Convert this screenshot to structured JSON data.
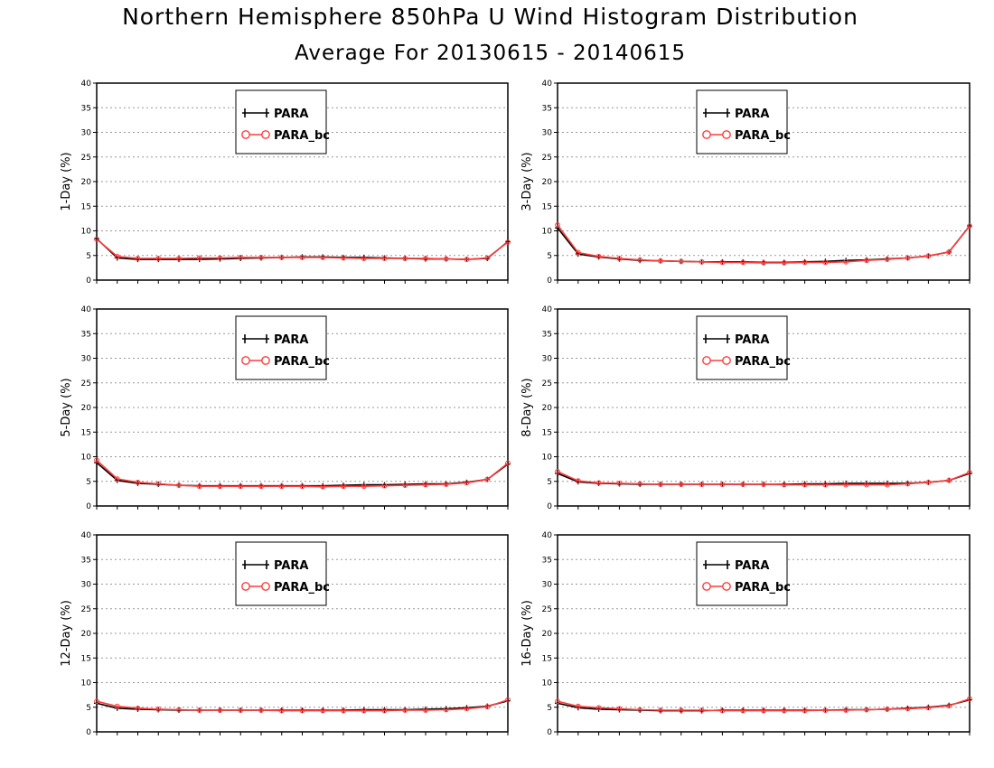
{
  "title": "Northern Hemisphere 850hPa U Wind Histogram Distribution",
  "subtitle": "Average For 20130615 - 20140615",
  "colors": {
    "series_1": "#000000",
    "series_2": "#ff3c3c",
    "grid": "#999999"
  },
  "chart_data": [
    {
      "type": "line",
      "ylabel": "1-Day (%)",
      "ylim": [
        0,
        40
      ],
      "yticks": [
        0,
        5,
        10,
        15,
        20,
        25,
        30,
        35,
        40
      ],
      "grid": "horizontal dotted",
      "legend": "top-center",
      "x": [
        1,
        2,
        3,
        4,
        5,
        6,
        7,
        8,
        9,
        10,
        11,
        12,
        13,
        14,
        15,
        16,
        17,
        18,
        19,
        20,
        21
      ],
      "series": [
        {
          "name": "PARA",
          "values": [
            8.4,
            4.5,
            4.2,
            4.2,
            4.2,
            4.2,
            4.3,
            4.4,
            4.5,
            4.6,
            4.7,
            4.7,
            4.6,
            4.6,
            4.5,
            4.4,
            4.3,
            4.3,
            4.2,
            4.4,
            7.8
          ]
        },
        {
          "name": "PARA_bc",
          "values": [
            8.3,
            4.8,
            4.4,
            4.4,
            4.4,
            4.5,
            4.5,
            4.6,
            4.6,
            4.6,
            4.6,
            4.6,
            4.5,
            4.4,
            4.4,
            4.4,
            4.4,
            4.3,
            4.2,
            4.5,
            7.7
          ]
        }
      ]
    },
    {
      "type": "line",
      "ylabel": "3-Day (%)",
      "ylim": [
        0,
        40
      ],
      "yticks": [
        0,
        5,
        10,
        15,
        20,
        25,
        30,
        35,
        40
      ],
      "grid": "horizontal dotted",
      "legend": "top-center",
      "x": [
        1,
        2,
        3,
        4,
        5,
        6,
        7,
        8,
        9,
        10,
        11,
        12,
        13,
        14,
        15,
        16,
        17,
        18,
        19,
        20,
        21
      ],
      "series": [
        {
          "name": "PARA",
          "values": [
            10.6,
            5.3,
            4.7,
            4.3,
            4.0,
            3.9,
            3.8,
            3.7,
            3.7,
            3.7,
            3.6,
            3.6,
            3.7,
            3.8,
            4.0,
            4.1,
            4.3,
            4.5,
            4.9,
            5.7,
            11.0
          ]
        },
        {
          "name": "PARA_bc",
          "values": [
            11.2,
            5.6,
            4.8,
            4.4,
            4.1,
            3.9,
            3.8,
            3.7,
            3.6,
            3.6,
            3.5,
            3.5,
            3.6,
            3.6,
            3.7,
            4.0,
            4.2,
            4.5,
            4.9,
            5.7,
            11.0
          ]
        }
      ]
    },
    {
      "type": "line",
      "ylabel": "5-Day (%)",
      "ylim": [
        0,
        40
      ],
      "yticks": [
        0,
        5,
        10,
        15,
        20,
        25,
        30,
        35,
        40
      ],
      "grid": "horizontal dotted",
      "legend": "top-center",
      "x": [
        1,
        2,
        3,
        4,
        5,
        6,
        7,
        8,
        9,
        10,
        11,
        12,
        13,
        14,
        15,
        16,
        17,
        18,
        19,
        20,
        21
      ],
      "series": [
        {
          "name": "PARA",
          "values": [
            8.8,
            5.2,
            4.6,
            4.4,
            4.2,
            4.1,
            4.1,
            4.1,
            4.1,
            4.1,
            4.1,
            4.1,
            4.2,
            4.3,
            4.3,
            4.4,
            4.5,
            4.5,
            4.8,
            5.4,
            8.5
          ]
        },
        {
          "name": "PARA_bc",
          "values": [
            9.3,
            5.5,
            4.8,
            4.5,
            4.2,
            4.0,
            4.0,
            4.0,
            4.0,
            4.0,
            4.0,
            3.9,
            4.0,
            4.0,
            4.1,
            4.2,
            4.3,
            4.4,
            4.7,
            5.4,
            8.7
          ]
        }
      ]
    },
    {
      "type": "line",
      "ylabel": "8-Day (%)",
      "ylim": [
        0,
        40
      ],
      "yticks": [
        0,
        5,
        10,
        15,
        20,
        25,
        30,
        35,
        40
      ],
      "grid": "horizontal dotted",
      "legend": "top-center",
      "x": [
        1,
        2,
        3,
        4,
        5,
        6,
        7,
        8,
        9,
        10,
        11,
        12,
        13,
        14,
        15,
        16,
        17,
        18,
        19,
        20,
        21
      ],
      "series": [
        {
          "name": "PARA",
          "values": [
            6.6,
            4.9,
            4.6,
            4.5,
            4.4,
            4.4,
            4.4,
            4.4,
            4.4,
            4.4,
            4.4,
            4.4,
            4.5,
            4.5,
            4.6,
            4.6,
            4.6,
            4.6,
            4.8,
            5.2,
            6.6
          ]
        },
        {
          "name": "PARA_bc",
          "values": [
            7.0,
            5.1,
            4.7,
            4.6,
            4.5,
            4.4,
            4.4,
            4.4,
            4.4,
            4.4,
            4.4,
            4.3,
            4.3,
            4.3,
            4.3,
            4.3,
            4.3,
            4.5,
            4.8,
            5.2,
            6.8
          ]
        }
      ]
    },
    {
      "type": "line",
      "ylabel": "12-Day (%)",
      "ylim": [
        0,
        40
      ],
      "yticks": [
        0,
        5,
        10,
        15,
        20,
        25,
        30,
        35,
        40
      ],
      "grid": "horizontal dotted",
      "legend": "top-center",
      "x": [
        1,
        2,
        3,
        4,
        5,
        6,
        7,
        8,
        9,
        10,
        11,
        12,
        13,
        14,
        15,
        16,
        17,
        18,
        19,
        20,
        21
      ],
      "series": [
        {
          "name": "PARA",
          "values": [
            5.8,
            4.8,
            4.6,
            4.5,
            4.4,
            4.4,
            4.4,
            4.4,
            4.4,
            4.4,
            4.4,
            4.4,
            4.4,
            4.5,
            4.5,
            4.5,
            4.6,
            4.7,
            4.9,
            5.2,
            6.3
          ]
        },
        {
          "name": "PARA_bc",
          "values": [
            6.2,
            5.2,
            4.8,
            4.6,
            4.5,
            4.4,
            4.4,
            4.4,
            4.4,
            4.3,
            4.3,
            4.3,
            4.3,
            4.3,
            4.3,
            4.4,
            4.4,
            4.5,
            4.7,
            5.1,
            6.5
          ]
        }
      ]
    },
    {
      "type": "line",
      "ylabel": "16-Day (%)",
      "ylim": [
        0,
        40
      ],
      "yticks": [
        0,
        5,
        10,
        15,
        20,
        25,
        30,
        35,
        40
      ],
      "grid": "horizontal dotted",
      "legend": "top-center",
      "x": [
        1,
        2,
        3,
        4,
        5,
        6,
        7,
        8,
        9,
        10,
        11,
        12,
        13,
        14,
        15,
        16,
        17,
        18,
        19,
        20,
        21
      ],
      "series": [
        {
          "name": "PARA",
          "values": [
            5.8,
            4.9,
            4.6,
            4.5,
            4.4,
            4.3,
            4.3,
            4.3,
            4.4,
            4.4,
            4.4,
            4.4,
            4.4,
            4.4,
            4.5,
            4.5,
            4.6,
            4.8,
            5.0,
            5.4,
            6.5
          ]
        },
        {
          "name": "PARA_bc",
          "values": [
            6.2,
            5.2,
            4.9,
            4.7,
            4.5,
            4.4,
            4.4,
            4.4,
            4.3,
            4.3,
            4.3,
            4.3,
            4.3,
            4.4,
            4.4,
            4.5,
            4.6,
            4.7,
            4.9,
            5.3,
            6.7
          ]
        }
      ]
    }
  ]
}
